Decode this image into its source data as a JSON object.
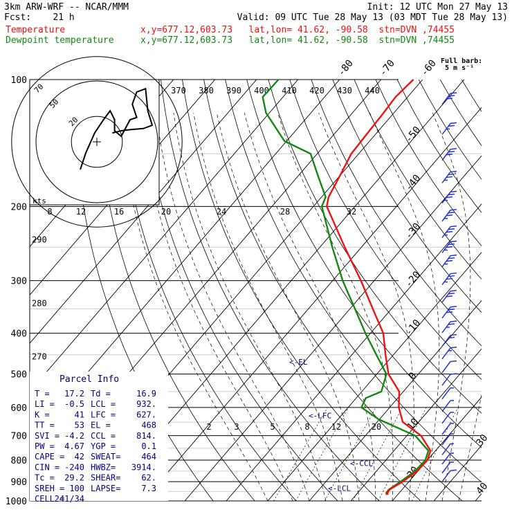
{
  "header": {
    "model": "3km ARW-WRF -- NCAR/MMM",
    "init": "Init: 12 UTC Mon 27 May 13",
    "fcst": "Fcst:    21 h",
    "valid": "Valid: 09 UTC Tue 28 May 13 (03 MDT Tue 28 May 13)",
    "temp_label": "Temperature",
    "dew_label": "Dewpoint temperature",
    "location": "x,y=677.12,603.73   lat,lon= 41.62, -90.58  stn=DVN ,74455",
    "full_barb_line1": "Full barb:",
    "full_barb_line2": "5 m s⁻¹"
  },
  "colors": {
    "temperature": "#ee1111",
    "dewpoint": "#118811",
    "label": "#000080",
    "barb": "#2233cc"
  },
  "chart_data": {
    "type": "skew-t",
    "y_axis": "pressure (hPa), log scale",
    "pressure_ticks": [
      100,
      200,
      300,
      400,
      500,
      600,
      700,
      800,
      900,
      1000
    ],
    "isotherm_labels": [
      -80,
      -70,
      -60,
      -50,
      -40,
      -30,
      -20,
      -10,
      0,
      10,
      20,
      30,
      40
    ],
    "theta_labels": [
      370,
      380,
      390,
      400,
      410,
      420,
      430,
      440
    ],
    "mixing_ratio_labels_upper": [
      8,
      12,
      16,
      20,
      24,
      28,
      32
    ],
    "mixing_ratio_labels_lower": [
      2,
      3,
      5,
      8,
      12,
      20
    ],
    "left_labels": [
      {
        "text": "290",
        "p": 240
      },
      {
        "text": "280",
        "p": 340
      },
      {
        "text": "270",
        "p": 455
      }
    ],
    "level_markers": [
      {
        "text": "<-EL",
        "p": 468
      },
      {
        "text": "<-LFC",
        "p": 627
      },
      {
        "text": "<-CCL",
        "p": 814
      },
      {
        "text": "<-LCL",
        "p": 932
      }
    ],
    "temperature": [
      {
        "p": 960,
        "t": 17.2
      },
      {
        "p": 940,
        "t": 17.0
      },
      {
        "p": 900,
        "t": 18.5
      },
      {
        "p": 850,
        "t": 19.8
      },
      {
        "p": 800,
        "t": 20.0
      },
      {
        "p": 760,
        "t": 18.8
      },
      {
        "p": 700,
        "t": 13.4
      },
      {
        "p": 650,
        "t": 6.2
      },
      {
        "p": 600,
        "t": 2.2
      },
      {
        "p": 550,
        "t": -1.0
      },
      {
        "p": 500,
        "t": -7.2
      },
      {
        "p": 450,
        "t": -11.9
      },
      {
        "p": 400,
        "t": -16.9
      },
      {
        "p": 350,
        "t": -24.5
      },
      {
        "p": 300,
        "t": -33.2
      },
      {
        "p": 250,
        "t": -44.0
      },
      {
        "p": 200,
        "t": -56.8
      },
      {
        "p": 190,
        "t": -58.3
      },
      {
        "p": 170,
        "t": -59.9
      },
      {
        "p": 150,
        "t": -61.8
      },
      {
        "p": 120,
        "t": -62.5
      },
      {
        "p": 110,
        "t": -62.9
      },
      {
        "p": 100,
        "t": -62.2
      }
    ],
    "dewpoint": [
      {
        "p": 960,
        "t": 16.9
      },
      {
        "p": 940,
        "t": 16.8
      },
      {
        "p": 900,
        "t": 18.0
      },
      {
        "p": 850,
        "t": 19.3
      },
      {
        "p": 800,
        "t": 19.5
      },
      {
        "p": 760,
        "t": 18.3
      },
      {
        "p": 700,
        "t": 12.0
      },
      {
        "p": 640,
        "t": -0.2
      },
      {
        "p": 600,
        "t": -6.8
      },
      {
        "p": 570,
        "t": -7.7
      },
      {
        "p": 550,
        "t": -5.3
      },
      {
        "p": 500,
        "t": -7.7
      },
      {
        "p": 450,
        "t": -14.1
      },
      {
        "p": 400,
        "t": -21.2
      },
      {
        "p": 350,
        "t": -28.8
      },
      {
        "p": 300,
        "t": -37.6
      },
      {
        "p": 250,
        "t": -47.0
      },
      {
        "p": 200,
        "t": -58.0
      },
      {
        "p": 190,
        "t": -59.0
      },
      {
        "p": 170,
        "t": -65.0
      },
      {
        "p": 150,
        "t": -71.6
      },
      {
        "p": 140,
        "t": -80.5
      },
      {
        "p": 120,
        "t": -90.8
      },
      {
        "p": 110,
        "t": -94.9
      },
      {
        "p": 100,
        "t": -94.7
      }
    ],
    "hodograph": {
      "unit_label": "kts",
      "ring_labels": [
        "20",
        "50",
        "70"
      ],
      "points": [
        [
          -15,
          -25
        ],
        [
          -10,
          -10
        ],
        [
          -2,
          8
        ],
        [
          6,
          20
        ],
        [
          12,
          28
        ],
        [
          16,
          20
        ],
        [
          16,
          10
        ],
        [
          22,
          5
        ],
        [
          30,
          20
        ],
        [
          36,
          22
        ],
        [
          32,
          34
        ],
        [
          36,
          45
        ],
        [
          44,
          48
        ],
        [
          46,
          28
        ],
        [
          50,
          15
        ],
        [
          42,
          12
        ],
        [
          30,
          11
        ],
        [
          22,
          10
        ],
        [
          14,
          8
        ]
      ]
    },
    "wind_barbs": [
      {
        "p": 112,
        "speed": 30
      },
      {
        "p": 132,
        "speed": 25
      },
      {
        "p": 152,
        "speed": 30
      },
      {
        "p": 172,
        "speed": 35
      },
      {
        "p": 192,
        "speed": 35
      },
      {
        "p": 212,
        "speed": 35
      },
      {
        "p": 232,
        "speed": 35
      },
      {
        "p": 252,
        "speed": 35
      },
      {
        "p": 272,
        "speed": 35
      },
      {
        "p": 300,
        "speed": 35
      },
      {
        "p": 330,
        "speed": 30
      },
      {
        "p": 360,
        "speed": 30
      },
      {
        "p": 390,
        "speed": 25
      },
      {
        "p": 420,
        "speed": 20
      },
      {
        "p": 450,
        "speed": 15
      },
      {
        "p": 485,
        "speed": 10
      },
      {
        "p": 520,
        "speed": 10
      },
      {
        "p": 560,
        "speed": 5
      },
      {
        "p": 600,
        "speed": 5
      },
      {
        "p": 640,
        "speed": 5
      },
      {
        "p": 680,
        "speed": 5
      },
      {
        "p": 720,
        "speed": 5
      },
      {
        "p": 760,
        "speed": 5
      },
      {
        "p": 800,
        "speed": 5
      },
      {
        "p": 840,
        "speed": 5
      },
      {
        "p": 880,
        "speed": 10
      }
    ],
    "parcel_info": {
      "title": "Parcel Info",
      "rows": [
        [
          "T  =",
          "17.2",
          "Td =",
          "16.9"
        ],
        [
          "LI =",
          "-0.5",
          "LCL =",
          "932."
        ],
        [
          "K  =",
          "41",
          "LFC =",
          "627."
        ],
        [
          "TT =",
          "53",
          "EL  =",
          "468"
        ],
        [
          "SVI =",
          "-4.2",
          "CCL =",
          "814."
        ],
        [
          "PW =",
          "4.67",
          "YGP =",
          "0.1"
        ],
        [
          "CAPE =",
          "42",
          "SWEAT=",
          "464"
        ],
        [
          "CIN =",
          "-240",
          "HWBZ=",
          "3914."
        ],
        [
          "Tc =",
          "29.2",
          "SHEAR=",
          "62."
        ],
        [
          "SREH =",
          "100",
          "LAPSE=",
          "7.3"
        ],
        [
          "CELL =",
          "241/34",
          "",
          ""
        ]
      ]
    }
  }
}
